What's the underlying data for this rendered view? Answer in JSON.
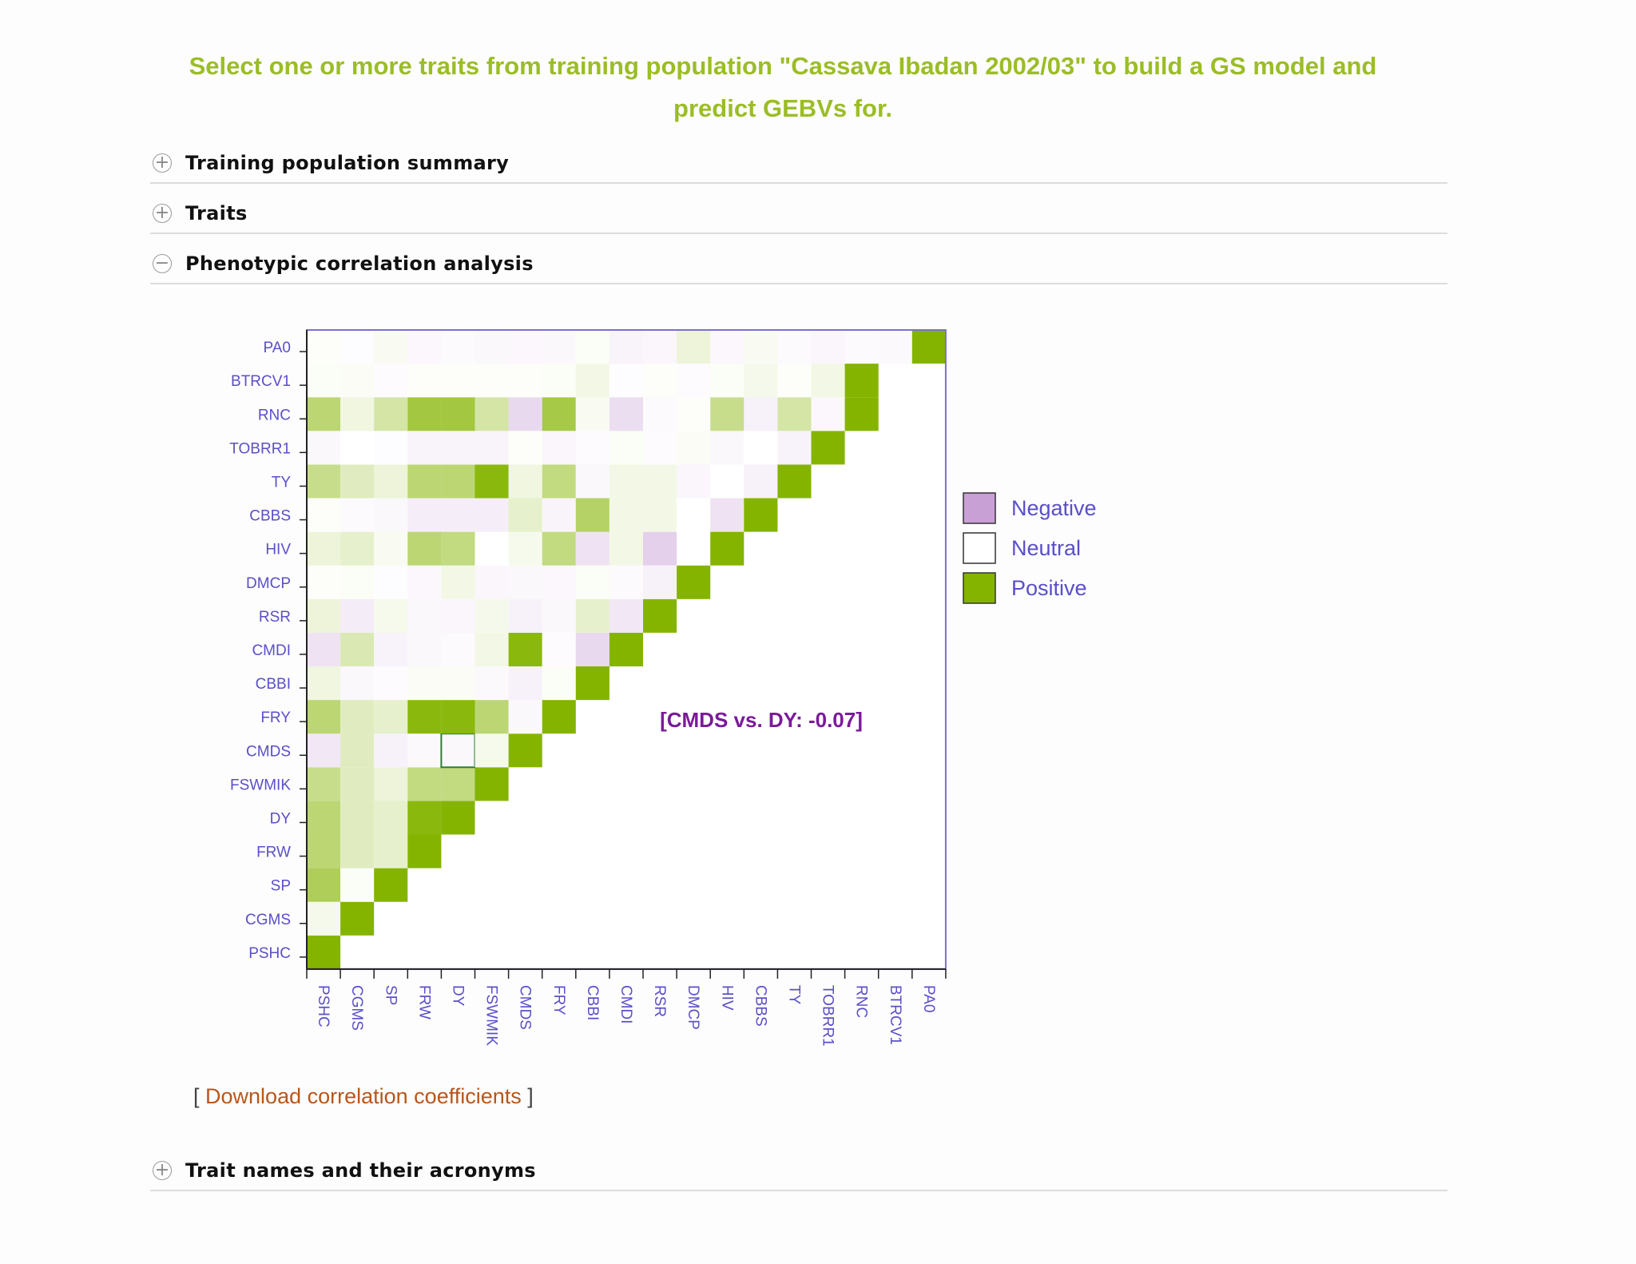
{
  "header": {
    "instruction_line1": "Select one or more traits from training population \"Cassava Ibadan 2002/03\" to build a GS model and",
    "instruction_line2": "predict GEBVs for."
  },
  "sections": [
    {
      "title": "Training population summary",
      "toggle": "+",
      "expanded": false
    },
    {
      "title": "Traits",
      "toggle": "+",
      "expanded": false
    },
    {
      "title": "Phenotypic correlation analysis",
      "toggle": "−",
      "expanded": true
    },
    {
      "title": "Trait names and their acronyms",
      "toggle": "+",
      "expanded": false
    }
  ],
  "download": {
    "open_bracket": "[",
    "link_text": "Download correlation coefficients",
    "close_bracket": "]"
  },
  "colors": {
    "negative": "#c9a0d6",
    "neutral": "#ffffff",
    "positive": "#84b400",
    "axis": "#5a4fc8",
    "headline": "#9bbd26",
    "tooltip": "#7a1a9a",
    "link": "#b8561a"
  },
  "chart_data": {
    "type": "heatmap",
    "traits": [
      "PSHC",
      "CGMS",
      "SP",
      "FRW",
      "DY",
      "FSWMIK",
      "CMDS",
      "FRY",
      "CBBI",
      "CMDI",
      "RSR",
      "DMCP",
      "HIV",
      "CBBS",
      "TY",
      "TOBRR1",
      "RNC",
      "BTRCV1",
      "PA0"
    ],
    "legend": [
      {
        "label": "Negative",
        "color": "#c9a0d6"
      },
      {
        "label": "Neutral",
        "color": "#ffffff"
      },
      {
        "label": "Positive",
        "color": "#84b400"
      }
    ],
    "tooltip": "[CMDS vs. DY: -0.07]",
    "highlighted_cell": {
      "row": "CMDS",
      "col": "DY",
      "value": -0.07
    },
    "rows": {
      "PA0": [
        0.02,
        -0.03,
        0.05,
        -0.08,
        -0.05,
        -0.07,
        -0.08,
        -0.07,
        0.03,
        -0.12,
        -0.1,
        0.15,
        -0.08,
        0.05,
        -0.05,
        -0.1,
        -0.05,
        -0.06,
        1
      ],
      "BTRCV1": [
        0.03,
        0.04,
        -0.04,
        0.02,
        0.02,
        0.02,
        0.02,
        0.03,
        0.1,
        -0.03,
        0.02,
        -0.04,
        0.03,
        0.08,
        0.02,
        0.1,
        1
      ],
      "RNC": [
        0.55,
        0.12,
        0.35,
        0.75,
        0.75,
        0.35,
        -0.4,
        0.72,
        0.05,
        -0.35,
        -0.05,
        0.02,
        0.45,
        -0.15,
        0.35,
        -0.08,
        1
      ],
      "TOBRR1": [
        -0.07,
        0.0,
        -0.03,
        -0.12,
        -0.12,
        -0.12,
        0.02,
        -0.1,
        -0.04,
        0.03,
        -0.04,
        0.04,
        -0.07,
        0.0,
        -0.13,
        1
      ],
      "TY": [
        0.45,
        0.25,
        0.15,
        0.55,
        0.55,
        0.95,
        0.12,
        0.5,
        -0.07,
        0.1,
        0.1,
        -0.1,
        0.0,
        -0.15,
        1
      ],
      "CBBS": [
        0.02,
        -0.05,
        -0.07,
        -0.18,
        -0.18,
        -0.18,
        0.2,
        -0.12,
        0.6,
        0.1,
        0.1,
        0.0,
        -0.3,
        1
      ],
      "HIV": [
        0.15,
        0.2,
        0.05,
        0.55,
        0.5,
        0.0,
        0.07,
        0.5,
        -0.3,
        0.1,
        -0.5,
        0.0,
        1
      ],
      "DMCP": [
        0.02,
        0.03,
        -0.03,
        -0.08,
        0.1,
        -0.1,
        -0.07,
        -0.08,
        0.03,
        -0.05,
        -0.15,
        1
      ],
      "RSR": [
        0.15,
        -0.2,
        0.07,
        -0.07,
        -0.1,
        0.08,
        -0.15,
        -0.07,
        0.2,
        -0.25,
        1
      ],
      "CMDI": [
        -0.3,
        0.3,
        -0.13,
        -0.07,
        -0.05,
        0.1,
        0.95,
        -0.04,
        -0.4,
        1
      ],
      "CBBI": [
        0.12,
        -0.07,
        -0.04,
        0.04,
        0.04,
        -0.06,
        -0.15,
        0.03,
        1
      ],
      "FRY": [
        0.55,
        0.25,
        0.2,
        0.95,
        0.95,
        0.55,
        -0.07,
        1
      ],
      "CMDS": [
        -0.25,
        0.25,
        -0.15,
        -0.06,
        -0.07,
        0.07,
        1
      ],
      "FSWMIK": [
        0.45,
        0.25,
        0.15,
        0.5,
        0.5,
        1
      ],
      "DY": [
        0.55,
        0.25,
        0.2,
        0.95,
        1
      ],
      "FRW": [
        0.55,
        0.25,
        0.2,
        1
      ],
      "SP": [
        0.65,
        0.03,
        1
      ],
      "CGMS": [
        0.08,
        1
      ],
      "PSHC": [
        1
      ]
    }
  }
}
